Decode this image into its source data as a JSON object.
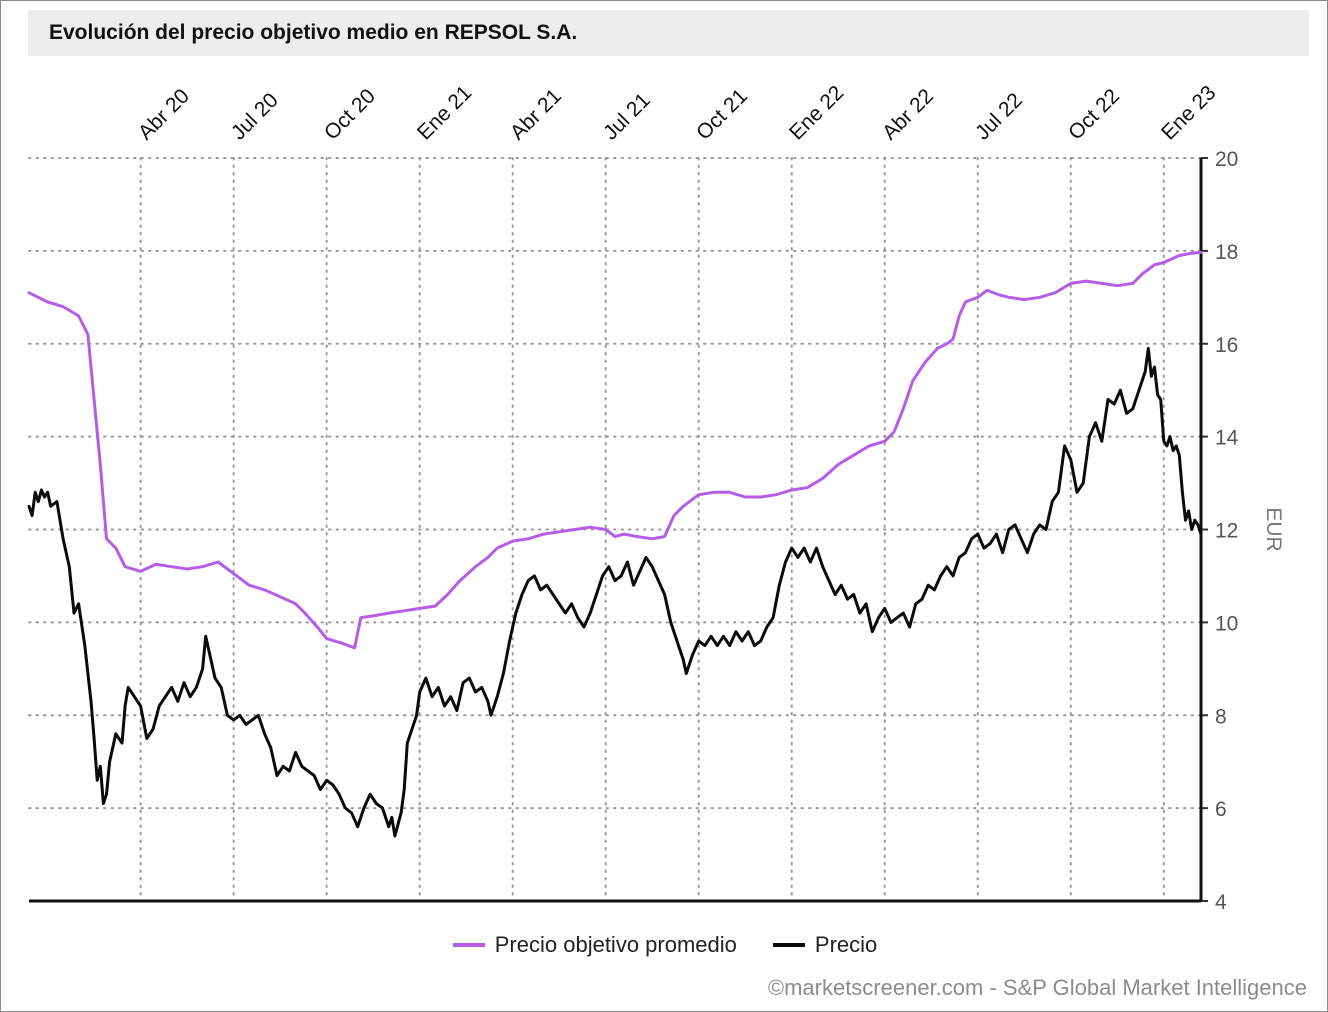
{
  "chart_data": {
    "type": "line",
    "title": "Evolución del precio objetivo medio en REPSOL S.A.",
    "xlabel": "",
    "ylabel": "EUR",
    "ylim": [
      4,
      20
    ],
    "yticks": [
      4,
      6,
      8,
      10,
      12,
      14,
      16,
      18,
      20
    ],
    "x_ticks": [
      "Abr 20",
      "Jul 20",
      "Oct 20",
      "Ene 21",
      "Abr 21",
      "Jul 21",
      "Oct 21",
      "Ene 22",
      "Abr 22",
      "Jul 22",
      "Oct 22",
      "Ene 23"
    ],
    "x_axis_position": "top",
    "y_axis_position": "right",
    "grid": true,
    "legend_position": "bottom-center",
    "x_unit": "months since 2020-01-01",
    "x_range": [
      -0.6,
      37.2
    ],
    "series": [
      {
        "name": "Precio objetivo promedio",
        "color": "#b55de6",
        "points": [
          [
            -0.6,
            17.1
          ],
          [
            0.0,
            16.9
          ],
          [
            0.5,
            16.8
          ],
          [
            1.0,
            16.6
          ],
          [
            1.3,
            16.2
          ],
          [
            1.5,
            14.8
          ],
          [
            1.7,
            13.4
          ],
          [
            1.9,
            11.8
          ],
          [
            2.2,
            11.6
          ],
          [
            2.5,
            11.2
          ],
          [
            3.0,
            11.1
          ],
          [
            3.5,
            11.25
          ],
          [
            4.0,
            11.2
          ],
          [
            4.5,
            11.15
          ],
          [
            5.0,
            11.2
          ],
          [
            5.5,
            11.3
          ],
          [
            6.0,
            11.05
          ],
          [
            6.5,
            10.8
          ],
          [
            7.0,
            10.7
          ],
          [
            7.5,
            10.55
          ],
          [
            8.0,
            10.4
          ],
          [
            8.3,
            10.2
          ],
          [
            8.7,
            9.9
          ],
          [
            9.0,
            9.65
          ],
          [
            9.5,
            9.55
          ],
          [
            9.9,
            9.45
          ],
          [
            10.1,
            10.1
          ],
          [
            10.6,
            10.15
          ],
          [
            11.0,
            10.2
          ],
          [
            11.5,
            10.25
          ],
          [
            12.0,
            10.3
          ],
          [
            12.5,
            10.35
          ],
          [
            12.9,
            10.6
          ],
          [
            13.3,
            10.9
          ],
          [
            13.8,
            11.2
          ],
          [
            14.2,
            11.4
          ],
          [
            14.5,
            11.6
          ],
          [
            15.0,
            11.75
          ],
          [
            15.5,
            11.8
          ],
          [
            16.0,
            11.9
          ],
          [
            16.5,
            11.95
          ],
          [
            17.0,
            12.0
          ],
          [
            17.5,
            12.05
          ],
          [
            18.0,
            12.0
          ],
          [
            18.3,
            11.85
          ],
          [
            18.6,
            11.9
          ],
          [
            19.0,
            11.85
          ],
          [
            19.5,
            11.8
          ],
          [
            19.9,
            11.85
          ],
          [
            20.2,
            12.3
          ],
          [
            20.5,
            12.5
          ],
          [
            21.0,
            12.75
          ],
          [
            21.5,
            12.8
          ],
          [
            22.0,
            12.8
          ],
          [
            22.5,
            12.7
          ],
          [
            23.0,
            12.7
          ],
          [
            23.5,
            12.75
          ],
          [
            24.0,
            12.85
          ],
          [
            24.5,
            12.9
          ],
          [
            25.0,
            13.1
          ],
          [
            25.5,
            13.4
          ],
          [
            26.0,
            13.6
          ],
          [
            26.5,
            13.8
          ],
          [
            27.0,
            13.9
          ],
          [
            27.3,
            14.1
          ],
          [
            27.6,
            14.6
          ],
          [
            27.9,
            15.2
          ],
          [
            28.3,
            15.6
          ],
          [
            28.7,
            15.9
          ],
          [
            29.0,
            16.0
          ],
          [
            29.2,
            16.1
          ],
          [
            29.4,
            16.6
          ],
          [
            29.6,
            16.9
          ],
          [
            30.0,
            17.0
          ],
          [
            30.3,
            17.15
          ],
          [
            30.7,
            17.05
          ],
          [
            31.0,
            17.0
          ],
          [
            31.5,
            16.95
          ],
          [
            32.0,
            17.0
          ],
          [
            32.5,
            17.1
          ],
          [
            33.0,
            17.3
          ],
          [
            33.5,
            17.35
          ],
          [
            34.0,
            17.3
          ],
          [
            34.5,
            17.25
          ],
          [
            35.0,
            17.3
          ],
          [
            35.3,
            17.5
          ],
          [
            35.7,
            17.7
          ],
          [
            36.0,
            17.75
          ],
          [
            36.5,
            17.9
          ],
          [
            36.9,
            17.95
          ],
          [
            37.2,
            17.97
          ]
        ]
      },
      {
        "name": "Precio",
        "color": "#0a0a0a",
        "points": [
          [
            -0.6,
            12.5
          ],
          [
            -0.5,
            12.3
          ],
          [
            -0.4,
            12.8
          ],
          [
            -0.3,
            12.6
          ],
          [
            -0.2,
            12.85
          ],
          [
            -0.1,
            12.7
          ],
          [
            0.0,
            12.8
          ],
          [
            0.1,
            12.5
          ],
          [
            0.3,
            12.6
          ],
          [
            0.5,
            11.8
          ],
          [
            0.7,
            11.2
          ],
          [
            0.85,
            10.2
          ],
          [
            1.0,
            10.4
          ],
          [
            1.2,
            9.5
          ],
          [
            1.4,
            8.3
          ],
          [
            1.5,
            7.5
          ],
          [
            1.6,
            6.6
          ],
          [
            1.7,
            6.9
          ],
          [
            1.8,
            6.1
          ],
          [
            1.9,
            6.3
          ],
          [
            2.0,
            7.0
          ],
          [
            2.2,
            7.6
          ],
          [
            2.4,
            7.4
          ],
          [
            2.5,
            8.2
          ],
          [
            2.6,
            8.6
          ],
          [
            2.8,
            8.4
          ],
          [
            3.0,
            8.2
          ],
          [
            3.2,
            7.5
          ],
          [
            3.4,
            7.7
          ],
          [
            3.6,
            8.2
          ],
          [
            3.8,
            8.4
          ],
          [
            4.0,
            8.6
          ],
          [
            4.2,
            8.3
          ],
          [
            4.4,
            8.7
          ],
          [
            4.6,
            8.4
          ],
          [
            4.8,
            8.6
          ],
          [
            5.0,
            9.0
          ],
          [
            5.1,
            9.7
          ],
          [
            5.2,
            9.4
          ],
          [
            5.4,
            8.8
          ],
          [
            5.6,
            8.6
          ],
          [
            5.8,
            8.0
          ],
          [
            6.0,
            7.9
          ],
          [
            6.2,
            8.0
          ],
          [
            6.4,
            7.8
          ],
          [
            6.6,
            7.9
          ],
          [
            6.8,
            8.0
          ],
          [
            7.0,
            7.6
          ],
          [
            7.2,
            7.3
          ],
          [
            7.4,
            6.7
          ],
          [
            7.6,
            6.9
          ],
          [
            7.8,
            6.8
          ],
          [
            8.0,
            7.2
          ],
          [
            8.2,
            6.9
          ],
          [
            8.4,
            6.8
          ],
          [
            8.6,
            6.7
          ],
          [
            8.8,
            6.4
          ],
          [
            9.0,
            6.6
          ],
          [
            9.2,
            6.5
          ],
          [
            9.4,
            6.3
          ],
          [
            9.6,
            6.0
          ],
          [
            9.8,
            5.9
          ],
          [
            10.0,
            5.6
          ],
          [
            10.2,
            6.0
          ],
          [
            10.4,
            6.3
          ],
          [
            10.6,
            6.1
          ],
          [
            10.8,
            6.0
          ],
          [
            11.0,
            5.6
          ],
          [
            11.1,
            5.8
          ],
          [
            11.2,
            5.4
          ],
          [
            11.4,
            5.9
          ],
          [
            11.5,
            6.4
          ],
          [
            11.6,
            7.4
          ],
          [
            11.7,
            7.6
          ],
          [
            11.9,
            8.0
          ],
          [
            12.0,
            8.5
          ],
          [
            12.2,
            8.8
          ],
          [
            12.4,
            8.4
          ],
          [
            12.6,
            8.6
          ],
          [
            12.8,
            8.2
          ],
          [
            13.0,
            8.4
          ],
          [
            13.2,
            8.1
          ],
          [
            13.4,
            8.7
          ],
          [
            13.6,
            8.8
          ],
          [
            13.8,
            8.5
          ],
          [
            14.0,
            8.6
          ],
          [
            14.2,
            8.3
          ],
          [
            14.3,
            8.0
          ],
          [
            14.5,
            8.4
          ],
          [
            14.7,
            8.9
          ],
          [
            14.9,
            9.6
          ],
          [
            15.1,
            10.2
          ],
          [
            15.3,
            10.6
          ],
          [
            15.5,
            10.9
          ],
          [
            15.7,
            11.0
          ],
          [
            15.9,
            10.7
          ],
          [
            16.1,
            10.8
          ],
          [
            16.3,
            10.6
          ],
          [
            16.5,
            10.4
          ],
          [
            16.7,
            10.2
          ],
          [
            16.9,
            10.4
          ],
          [
            17.1,
            10.1
          ],
          [
            17.3,
            9.9
          ],
          [
            17.5,
            10.2
          ],
          [
            17.7,
            10.6
          ],
          [
            17.9,
            11.0
          ],
          [
            18.1,
            11.2
          ],
          [
            18.3,
            10.9
          ],
          [
            18.5,
            11.0
          ],
          [
            18.7,
            11.3
          ],
          [
            18.9,
            10.8
          ],
          [
            19.1,
            11.1
          ],
          [
            19.3,
            11.4
          ],
          [
            19.5,
            11.2
          ],
          [
            19.7,
            10.9
          ],
          [
            19.9,
            10.6
          ],
          [
            20.1,
            10.0
          ],
          [
            20.3,
            9.6
          ],
          [
            20.5,
            9.2
          ],
          [
            20.6,
            8.9
          ],
          [
            20.8,
            9.3
          ],
          [
            21.0,
            9.6
          ],
          [
            21.2,
            9.5
          ],
          [
            21.4,
            9.7
          ],
          [
            21.6,
            9.5
          ],
          [
            21.8,
            9.7
          ],
          [
            22.0,
            9.5
          ],
          [
            22.2,
            9.8
          ],
          [
            22.4,
            9.6
          ],
          [
            22.6,
            9.8
          ],
          [
            22.8,
            9.5
          ],
          [
            23.0,
            9.6
          ],
          [
            23.2,
            9.9
          ],
          [
            23.4,
            10.1
          ],
          [
            23.6,
            10.8
          ],
          [
            23.8,
            11.3
          ],
          [
            24.0,
            11.6
          ],
          [
            24.2,
            11.4
          ],
          [
            24.4,
            11.6
          ],
          [
            24.6,
            11.3
          ],
          [
            24.8,
            11.6
          ],
          [
            25.0,
            11.2
          ],
          [
            25.2,
            10.9
          ],
          [
            25.4,
            10.6
          ],
          [
            25.6,
            10.8
          ],
          [
            25.8,
            10.5
          ],
          [
            26.0,
            10.6
          ],
          [
            26.2,
            10.2
          ],
          [
            26.4,
            10.4
          ],
          [
            26.6,
            9.8
          ],
          [
            26.8,
            10.1
          ],
          [
            27.0,
            10.3
          ],
          [
            27.2,
            10.0
          ],
          [
            27.4,
            10.1
          ],
          [
            27.6,
            10.2
          ],
          [
            27.8,
            9.9
          ],
          [
            28.0,
            10.4
          ],
          [
            28.2,
            10.5
          ],
          [
            28.4,
            10.8
          ],
          [
            28.6,
            10.7
          ],
          [
            28.8,
            11.0
          ],
          [
            29.0,
            11.2
          ],
          [
            29.2,
            11.0
          ],
          [
            29.4,
            11.4
          ],
          [
            29.6,
            11.5
          ],
          [
            29.8,
            11.8
          ],
          [
            30.0,
            11.9
          ],
          [
            30.2,
            11.6
          ],
          [
            30.4,
            11.7
          ],
          [
            30.6,
            11.9
          ],
          [
            30.8,
            11.5
          ],
          [
            31.0,
            12.0
          ],
          [
            31.2,
            12.1
          ],
          [
            31.4,
            11.8
          ],
          [
            31.6,
            11.5
          ],
          [
            31.8,
            11.9
          ],
          [
            32.0,
            12.1
          ],
          [
            32.2,
            12.0
          ],
          [
            32.4,
            12.6
          ],
          [
            32.6,
            12.8
          ],
          [
            32.8,
            13.8
          ],
          [
            33.0,
            13.5
          ],
          [
            33.2,
            12.8
          ],
          [
            33.4,
            13.0
          ],
          [
            33.6,
            14.0
          ],
          [
            33.8,
            14.3
          ],
          [
            34.0,
            13.9
          ],
          [
            34.2,
            14.8
          ],
          [
            34.4,
            14.7
          ],
          [
            34.6,
            15.0
          ],
          [
            34.8,
            14.5
          ],
          [
            35.0,
            14.6
          ],
          [
            35.2,
            15.0
          ],
          [
            35.4,
            15.4
          ],
          [
            35.5,
            15.9
          ],
          [
            35.6,
            15.3
          ],
          [
            35.7,
            15.5
          ],
          [
            35.8,
            14.9
          ],
          [
            35.9,
            14.8
          ],
          [
            36.0,
            13.9
          ],
          [
            36.1,
            13.8
          ],
          [
            36.2,
            14.0
          ],
          [
            36.3,
            13.7
          ],
          [
            36.4,
            13.8
          ],
          [
            36.5,
            13.6
          ],
          [
            36.6,
            12.8
          ],
          [
            36.7,
            12.2
          ],
          [
            36.8,
            12.4
          ],
          [
            36.9,
            12.0
          ],
          [
            37.0,
            12.2
          ],
          [
            37.1,
            12.1
          ],
          [
            37.2,
            11.9
          ]
        ]
      }
    ]
  },
  "legend": {
    "items": [
      {
        "label": "Precio objetivo promedio",
        "color": "#b55de6"
      },
      {
        "label": "Precio",
        "color": "#0a0a0a"
      }
    ]
  },
  "source": "©marketscreener.com - S&P Global Market Intelligence"
}
